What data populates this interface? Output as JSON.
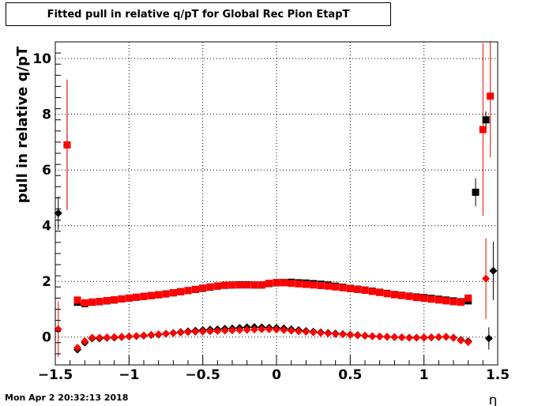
{
  "chart_data": {
    "type": "scatter",
    "title": "Fitted pull in relative q/pT for Global Rec Pion EtapT",
    "xlabel": "η",
    "ylabel": "pull in relative q/pT",
    "xlim": [
      -1.5,
      1.5
    ],
    "ylim": [
      -1.0,
      10.6
    ],
    "xticks": [
      -1.5,
      -1,
      -0.5,
      0,
      0.5,
      1,
      1.5
    ],
    "xtick_labels": [
      "−1.5",
      "−1",
      "−0.5",
      "0",
      "0.5",
      "1",
      "1.5"
    ],
    "yticks": [
      0,
      2,
      4,
      6,
      8,
      10
    ],
    "ytick_labels": [
      "0",
      "2",
      "4",
      "6",
      "8",
      "10"
    ],
    "grid": true,
    "colors": {
      "black_series": "#000000",
      "red_series": "#ff0000"
    },
    "series": [
      {
        "marker": "square",
        "color": "#000000",
        "points": [
          {
            "x": -1.42,
            "y": 6.9,
            "err": 2.3
          },
          {
            "x": -1.35,
            "y": 1.25
          },
          {
            "x": -1.3,
            "y": 1.2
          },
          {
            "x": -1.25,
            "y": 1.25
          },
          {
            "x": -1.2,
            "y": 1.27
          },
          {
            "x": -1.15,
            "y": 1.3
          },
          {
            "x": -1.1,
            "y": 1.33
          },
          {
            "x": -1.05,
            "y": 1.37
          },
          {
            "x": -1.0,
            "y": 1.4
          },
          {
            "x": -0.95,
            "y": 1.43
          },
          {
            "x": -0.9,
            "y": 1.46
          },
          {
            "x": -0.85,
            "y": 1.49
          },
          {
            "x": -0.8,
            "y": 1.52
          },
          {
            "x": -0.75,
            "y": 1.55
          },
          {
            "x": -0.7,
            "y": 1.59
          },
          {
            "x": -0.65,
            "y": 1.63
          },
          {
            "x": -0.6,
            "y": 1.67
          },
          {
            "x": -0.55,
            "y": 1.71
          },
          {
            "x": -0.5,
            "y": 1.75
          },
          {
            "x": -0.45,
            "y": 1.79
          },
          {
            "x": -0.4,
            "y": 1.83
          },
          {
            "x": -0.35,
            "y": 1.86
          },
          {
            "x": -0.3,
            "y": 1.87
          },
          {
            "x": -0.25,
            "y": 1.88
          },
          {
            "x": -0.2,
            "y": 1.88
          },
          {
            "x": -0.15,
            "y": 1.87
          },
          {
            "x": -0.1,
            "y": 1.87
          },
          {
            "x": -0.05,
            "y": 1.92
          },
          {
            "x": 0.0,
            "y": 1.95
          },
          {
            "x": 0.05,
            "y": 1.96
          },
          {
            "x": 0.1,
            "y": 1.97
          },
          {
            "x": 0.15,
            "y": 1.95
          },
          {
            "x": 0.2,
            "y": 1.94
          },
          {
            "x": 0.25,
            "y": 1.92
          },
          {
            "x": 0.3,
            "y": 1.9
          },
          {
            "x": 0.35,
            "y": 1.87
          },
          {
            "x": 0.4,
            "y": 1.83
          },
          {
            "x": 0.45,
            "y": 1.79
          },
          {
            "x": 0.5,
            "y": 1.75
          },
          {
            "x": 0.55,
            "y": 1.72
          },
          {
            "x": 0.6,
            "y": 1.69
          },
          {
            "x": 0.65,
            "y": 1.65
          },
          {
            "x": 0.7,
            "y": 1.61
          },
          {
            "x": 0.75,
            "y": 1.57
          },
          {
            "x": 0.8,
            "y": 1.53
          },
          {
            "x": 0.85,
            "y": 1.5
          },
          {
            "x": 0.9,
            "y": 1.47
          },
          {
            "x": 0.95,
            "y": 1.44
          },
          {
            "x": 1.0,
            "y": 1.42
          },
          {
            "x": 1.05,
            "y": 1.39
          },
          {
            "x": 1.1,
            "y": 1.36
          },
          {
            "x": 1.15,
            "y": 1.33
          },
          {
            "x": 1.2,
            "y": 1.3
          },
          {
            "x": 1.25,
            "y": 1.27
          },
          {
            "x": 1.3,
            "y": 1.3
          },
          {
            "x": 1.35,
            "y": 5.2,
            "err": 0.5
          },
          {
            "x": 1.42,
            "y": 7.8,
            "err": 0.3
          }
        ]
      },
      {
        "marker": "square",
        "color": "#ff0000",
        "points": [
          {
            "x": -1.42,
            "y": 6.9,
            "err": 2.35
          },
          {
            "x": -1.35,
            "y": 1.33
          },
          {
            "x": -1.3,
            "y": 1.23
          },
          {
            "x": -1.25,
            "y": 1.26
          },
          {
            "x": -1.2,
            "y": 1.28
          },
          {
            "x": -1.15,
            "y": 1.31
          },
          {
            "x": -1.1,
            "y": 1.34
          },
          {
            "x": -1.05,
            "y": 1.37
          },
          {
            "x": -1.0,
            "y": 1.4
          },
          {
            "x": -0.95,
            "y": 1.43
          },
          {
            "x": -0.9,
            "y": 1.46
          },
          {
            "x": -0.85,
            "y": 1.49
          },
          {
            "x": -0.8,
            "y": 1.52
          },
          {
            "x": -0.75,
            "y": 1.55
          },
          {
            "x": -0.7,
            "y": 1.59
          },
          {
            "x": -0.65,
            "y": 1.63
          },
          {
            "x": -0.6,
            "y": 1.67
          },
          {
            "x": -0.55,
            "y": 1.71
          },
          {
            "x": -0.5,
            "y": 1.76
          },
          {
            "x": -0.45,
            "y": 1.8
          },
          {
            "x": -0.4,
            "y": 1.83
          },
          {
            "x": -0.35,
            "y": 1.86
          },
          {
            "x": -0.3,
            "y": 1.87
          },
          {
            "x": -0.25,
            "y": 1.87
          },
          {
            "x": -0.2,
            "y": 1.87
          },
          {
            "x": -0.15,
            "y": 1.87
          },
          {
            "x": -0.1,
            "y": 1.87
          },
          {
            "x": -0.05,
            "y": 1.93
          },
          {
            "x": 0.0,
            "y": 1.96
          },
          {
            "x": 0.05,
            "y": 1.95
          },
          {
            "x": 0.1,
            "y": 1.93
          },
          {
            "x": 0.15,
            "y": 1.91
          },
          {
            "x": 0.2,
            "y": 1.89
          },
          {
            "x": 0.25,
            "y": 1.87
          },
          {
            "x": 0.3,
            "y": 1.85
          },
          {
            "x": 0.35,
            "y": 1.83
          },
          {
            "x": 0.4,
            "y": 1.8
          },
          {
            "x": 0.45,
            "y": 1.77
          },
          {
            "x": 0.5,
            "y": 1.74
          },
          {
            "x": 0.55,
            "y": 1.71
          },
          {
            "x": 0.6,
            "y": 1.68
          },
          {
            "x": 0.65,
            "y": 1.64
          },
          {
            "x": 0.7,
            "y": 1.6
          },
          {
            "x": 0.75,
            "y": 1.56
          },
          {
            "x": 0.8,
            "y": 1.52
          },
          {
            "x": 0.85,
            "y": 1.49
          },
          {
            "x": 0.9,
            "y": 1.46
          },
          {
            "x": 0.95,
            "y": 1.42
          },
          {
            "x": 1.0,
            "y": 1.39
          },
          {
            "x": 1.05,
            "y": 1.36
          },
          {
            "x": 1.1,
            "y": 1.33
          },
          {
            "x": 1.15,
            "y": 1.3
          },
          {
            "x": 1.2,
            "y": 1.27
          },
          {
            "x": 1.25,
            "y": 1.25
          },
          {
            "x": 1.3,
            "y": 1.4
          },
          {
            "x": 1.4,
            "y": 7.45,
            "err": 3.1
          },
          {
            "x": 1.45,
            "y": 8.65,
            "err": 2.2
          }
        ]
      },
      {
        "marker": "diamond",
        "color": "#000000",
        "points": [
          {
            "x": -1.48,
            "y": 4.45,
            "err": 0.6
          },
          {
            "x": -1.35,
            "y": -0.45
          },
          {
            "x": -1.3,
            "y": -0.2
          },
          {
            "x": -1.25,
            "y": -0.05
          },
          {
            "x": -1.2,
            "y": -0.05
          },
          {
            "x": -1.15,
            "y": -0.03
          },
          {
            "x": -1.1,
            "y": -0.02
          },
          {
            "x": -1.05,
            "y": 0.0
          },
          {
            "x": -1.0,
            "y": 0.02
          },
          {
            "x": -0.95,
            "y": 0.03
          },
          {
            "x": -0.9,
            "y": 0.05
          },
          {
            "x": -0.85,
            "y": 0.07
          },
          {
            "x": -0.8,
            "y": 0.09
          },
          {
            "x": -0.75,
            "y": 0.12
          },
          {
            "x": -0.7,
            "y": 0.15
          },
          {
            "x": -0.65,
            "y": 0.18
          },
          {
            "x": -0.6,
            "y": 0.21
          },
          {
            "x": -0.55,
            "y": 0.23
          },
          {
            "x": -0.5,
            "y": 0.25
          },
          {
            "x": -0.45,
            "y": 0.27
          },
          {
            "x": -0.4,
            "y": 0.28
          },
          {
            "x": -0.35,
            "y": 0.3
          },
          {
            "x": -0.3,
            "y": 0.31
          },
          {
            "x": -0.25,
            "y": 0.33
          },
          {
            "x": -0.2,
            "y": 0.35
          },
          {
            "x": -0.15,
            "y": 0.36
          },
          {
            "x": -0.1,
            "y": 0.35
          },
          {
            "x": -0.05,
            "y": 0.34
          },
          {
            "x": 0.0,
            "y": 0.33
          },
          {
            "x": 0.05,
            "y": 0.31
          },
          {
            "x": 0.1,
            "y": 0.28
          },
          {
            "x": 0.15,
            "y": 0.25
          },
          {
            "x": 0.2,
            "y": 0.22
          },
          {
            "x": 0.25,
            "y": 0.2
          },
          {
            "x": 0.3,
            "y": 0.17
          },
          {
            "x": 0.35,
            "y": 0.15
          },
          {
            "x": 0.4,
            "y": 0.13
          },
          {
            "x": 0.45,
            "y": 0.11
          },
          {
            "x": 0.5,
            "y": 0.09
          },
          {
            "x": 0.55,
            "y": 0.07
          },
          {
            "x": 0.6,
            "y": 0.05
          },
          {
            "x": 0.65,
            "y": 0.03
          },
          {
            "x": 0.7,
            "y": 0.02
          },
          {
            "x": 0.75,
            "y": 0.01
          },
          {
            "x": 0.8,
            "y": 0.0
          },
          {
            "x": 0.85,
            "y": -0.01
          },
          {
            "x": 0.9,
            "y": -0.02
          },
          {
            "x": 0.95,
            "y": -0.02
          },
          {
            "x": 1.0,
            "y": -0.02
          },
          {
            "x": 1.05,
            "y": -0.01
          },
          {
            "x": 1.1,
            "y": 0.0
          },
          {
            "x": 1.15,
            "y": 0.01
          },
          {
            "x": 1.2,
            "y": -0.02
          },
          {
            "x": 1.25,
            "y": -0.1
          },
          {
            "x": 1.3,
            "y": -0.15
          },
          {
            "x": 1.44,
            "y": -0.05,
            "err": 0.4
          },
          {
            "x": 1.47,
            "y": 2.38,
            "err": 1.05
          }
        ]
      },
      {
        "marker": "diamond",
        "color": "#ff0000",
        "points": [
          {
            "x": -1.48,
            "y": 0.28,
            "err": 1.0
          },
          {
            "x": -1.35,
            "y": -0.38
          },
          {
            "x": -1.3,
            "y": -0.15
          },
          {
            "x": -1.25,
            "y": -0.02
          },
          {
            "x": -1.2,
            "y": -0.02
          },
          {
            "x": -1.15,
            "y": -0.01
          },
          {
            "x": -1.1,
            "y": 0.0
          },
          {
            "x": -1.05,
            "y": 0.01
          },
          {
            "x": -1.0,
            "y": 0.02
          },
          {
            "x": -0.95,
            "y": 0.04
          },
          {
            "x": -0.9,
            "y": 0.06
          },
          {
            "x": -0.85,
            "y": 0.08
          },
          {
            "x": -0.8,
            "y": 0.1
          },
          {
            "x": -0.75,
            "y": 0.12
          },
          {
            "x": -0.7,
            "y": 0.14
          },
          {
            "x": -0.65,
            "y": 0.16
          },
          {
            "x": -0.6,
            "y": 0.18
          },
          {
            "x": -0.55,
            "y": 0.19
          },
          {
            "x": -0.5,
            "y": 0.2
          },
          {
            "x": -0.45,
            "y": 0.21
          },
          {
            "x": -0.4,
            "y": 0.22
          },
          {
            "x": -0.35,
            "y": 0.23
          },
          {
            "x": -0.3,
            "y": 0.24
          },
          {
            "x": -0.25,
            "y": 0.25
          },
          {
            "x": -0.2,
            "y": 0.26
          },
          {
            "x": -0.15,
            "y": 0.27
          },
          {
            "x": -0.1,
            "y": 0.28
          },
          {
            "x": -0.05,
            "y": 0.28
          },
          {
            "x": 0.0,
            "y": 0.27
          },
          {
            "x": 0.05,
            "y": 0.25
          },
          {
            "x": 0.1,
            "y": 0.23
          },
          {
            "x": 0.15,
            "y": 0.21
          },
          {
            "x": 0.2,
            "y": 0.19
          },
          {
            "x": 0.25,
            "y": 0.17
          },
          {
            "x": 0.3,
            "y": 0.15
          },
          {
            "x": 0.35,
            "y": 0.13
          },
          {
            "x": 0.4,
            "y": 0.11
          },
          {
            "x": 0.45,
            "y": 0.1
          },
          {
            "x": 0.5,
            "y": 0.08
          },
          {
            "x": 0.55,
            "y": 0.06
          },
          {
            "x": 0.6,
            "y": 0.05
          },
          {
            "x": 0.65,
            "y": 0.03
          },
          {
            "x": 0.7,
            "y": 0.02
          },
          {
            "x": 0.75,
            "y": 0.01
          },
          {
            "x": 0.8,
            "y": 0.0
          },
          {
            "x": 0.85,
            "y": -0.01
          },
          {
            "x": 0.9,
            "y": -0.02
          },
          {
            "x": 0.95,
            "y": -0.02
          },
          {
            "x": 1.0,
            "y": -0.01
          },
          {
            "x": 1.05,
            "y": -0.01
          },
          {
            "x": 1.1,
            "y": 0.0
          },
          {
            "x": 1.15,
            "y": 0.01
          },
          {
            "x": 1.2,
            "y": -0.03
          },
          {
            "x": 1.25,
            "y": -0.12
          },
          {
            "x": 1.3,
            "y": -0.18
          },
          {
            "x": 1.42,
            "y": 2.1,
            "err": 1.45
          }
        ]
      }
    ]
  },
  "footer": {
    "date": "Mon Apr  2 20:32:13 2018"
  }
}
